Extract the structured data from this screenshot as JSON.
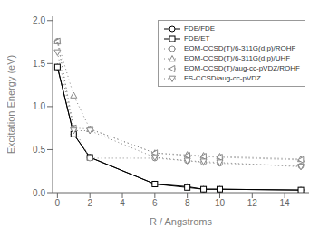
{
  "chart_data": {
    "type": "line",
    "xlabel": "R / Angstroms",
    "ylabel": "Excitation Energy (eV)",
    "x": [
      0.0,
      1.0,
      2.0,
      6.0,
      8.0,
      9.0,
      10.0,
      15.0
    ],
    "series": [
      {
        "name": "FDE/FDE",
        "color": "black",
        "marker": "circle",
        "line_style": "solid",
        "values": [
          1.46,
          0.68,
          0.41,
          0.1,
          0.07,
          0.04,
          0.04,
          0.03
        ]
      },
      {
        "name": "FDE/ET",
        "color": "black",
        "marker": "square",
        "line_style": "solid",
        "values": [
          1.46,
          0.68,
          0.41,
          0.1,
          0.06,
          0.04,
          0.04,
          0.03
        ]
      },
      {
        "name": "EOM-CCSD(T)/6-311G(d,p)/ROHF",
        "color": "#888888",
        "marker": "circle",
        "line_style": "dotted",
        "values": [
          1.76,
          0.75,
          0.4,
          0.4,
          0.37,
          0.35,
          0.34,
          0.31
        ]
      },
      {
        "name": "EOM-CCSD(T)/6-311G(d,p)/UHF",
        "color": "#888888",
        "marker": "triangle-up",
        "line_style": "dotted",
        "values": [
          1.76,
          1.13,
          0.74,
          0.46,
          0.44,
          0.43,
          0.42,
          0.39
        ]
      },
      {
        "name": "EOM-CCSD(T)/aug-cc-pVDZ/ROHF",
        "color": "#888888",
        "marker": "triangle-left",
        "line_style": "dotted",
        "values": [
          1.76,
          0.75,
          0.74,
          0.46,
          0.43,
          0.42,
          0.41,
          0.38
        ]
      },
      {
        "name": "FS-CCSD/aug-cc-pVDZ",
        "color": "#888888",
        "marker": "triangle-down",
        "line_style": "dotted",
        "values": [
          1.63,
          0.72,
          0.72,
          0.41,
          0.37,
          0.36,
          0.35,
          0.3
        ]
      }
    ],
    "xlim": [
      -0.3,
      15.5
    ],
    "ylim": [
      0,
      2.05
    ],
    "xticks": [
      0,
      2,
      4,
      6,
      8,
      10,
      12,
      14
    ],
    "yticks": [
      {
        "value": 0.0,
        "label": "0.0"
      },
      0.5,
      {
        "value": 1.0,
        "label": "1.0"
      },
      1.5,
      {
        "value": 2.0,
        "label": "2.0"
      }
    ],
    "grid": false,
    "legend": "upper right"
  }
}
